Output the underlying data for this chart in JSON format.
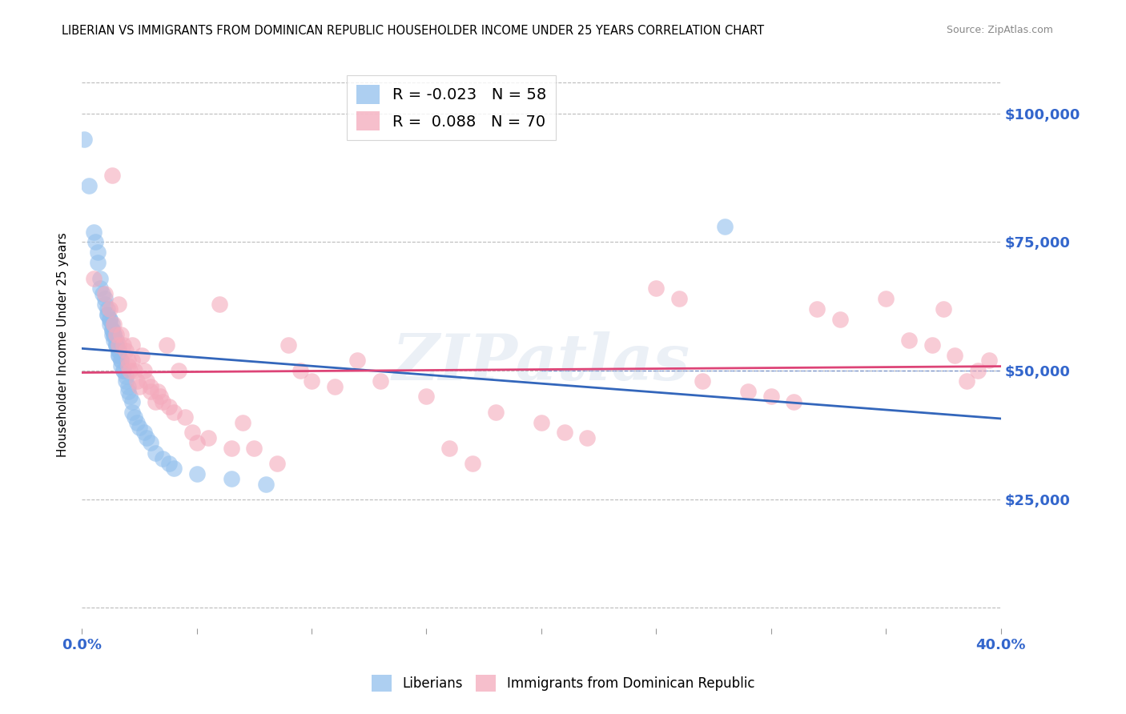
{
  "title": "LIBERIAN VS IMMIGRANTS FROM DOMINICAN REPUBLIC HOUSEHOLDER INCOME UNDER 25 YEARS CORRELATION CHART",
  "source": "Source: ZipAtlas.com",
  "ylabel": "Householder Income Under 25 years",
  "ytick_labels": [
    "$25,000",
    "$50,000",
    "$75,000",
    "$100,000"
  ],
  "ytick_values": [
    25000,
    50000,
    75000,
    100000
  ],
  "ylim": [
    0,
    110000
  ],
  "xlim": [
    0,
    0.4
  ],
  "legend_blue_r": "-0.023",
  "legend_blue_n": "58",
  "legend_pink_r": "0.088",
  "legend_pink_n": "70",
  "blue_color": "#92BFED",
  "pink_color": "#F4AABC",
  "trend_blue": "#3366BB",
  "trend_pink": "#DD4477",
  "background": "#FFFFFF",
  "grid_color": "#BBBBBB",
  "axis_label_color": "#3366CC",
  "watermark": "ZIPatlas",
  "blue_x": [
    0.001,
    0.003,
    0.005,
    0.006,
    0.007,
    0.007,
    0.008,
    0.008,
    0.009,
    0.01,
    0.01,
    0.011,
    0.011,
    0.011,
    0.012,
    0.012,
    0.012,
    0.013,
    0.013,
    0.013,
    0.013,
    0.014,
    0.014,
    0.014,
    0.015,
    0.015,
    0.015,
    0.015,
    0.016,
    0.016,
    0.016,
    0.016,
    0.017,
    0.017,
    0.017,
    0.018,
    0.018,
    0.019,
    0.019,
    0.02,
    0.02,
    0.021,
    0.022,
    0.022,
    0.023,
    0.024,
    0.025,
    0.027,
    0.028,
    0.03,
    0.032,
    0.035,
    0.038,
    0.04,
    0.05,
    0.065,
    0.08,
    0.28
  ],
  "blue_y": [
    95000,
    86000,
    77000,
    75000,
    73000,
    71000,
    68000,
    66000,
    65000,
    64000,
    63000,
    62000,
    61000,
    61000,
    60000,
    60000,
    59000,
    59000,
    58000,
    58000,
    57000,
    57000,
    57000,
    56000,
    56000,
    55000,
    55000,
    55000,
    54000,
    54000,
    53000,
    53000,
    52000,
    52000,
    51000,
    50000,
    50000,
    49000,
    48000,
    47000,
    46000,
    45000,
    44000,
    42000,
    41000,
    40000,
    39000,
    38000,
    37000,
    36000,
    34000,
    33000,
    32000,
    31000,
    30000,
    29000,
    28000,
    78000
  ],
  "pink_x": [
    0.005,
    0.01,
    0.012,
    0.013,
    0.014,
    0.015,
    0.016,
    0.016,
    0.017,
    0.018,
    0.019,
    0.02,
    0.02,
    0.021,
    0.022,
    0.022,
    0.023,
    0.024,
    0.025,
    0.026,
    0.027,
    0.028,
    0.03,
    0.03,
    0.032,
    0.033,
    0.034,
    0.035,
    0.037,
    0.038,
    0.04,
    0.042,
    0.045,
    0.048,
    0.05,
    0.055,
    0.06,
    0.065,
    0.07,
    0.075,
    0.085,
    0.09,
    0.095,
    0.1,
    0.11,
    0.12,
    0.13,
    0.15,
    0.16,
    0.17,
    0.18,
    0.2,
    0.21,
    0.22,
    0.25,
    0.26,
    0.27,
    0.29,
    0.3,
    0.31,
    0.32,
    0.33,
    0.35,
    0.36,
    0.37,
    0.375,
    0.38,
    0.385,
    0.39,
    0.395
  ],
  "pink_y": [
    68000,
    65000,
    62000,
    88000,
    59000,
    57000,
    55000,
    63000,
    57000,
    55000,
    54000,
    52000,
    51000,
    50000,
    55000,
    52000,
    50000,
    48000,
    47000,
    53000,
    50000,
    48000,
    47000,
    46000,
    44000,
    46000,
    45000,
    44000,
    55000,
    43000,
    42000,
    50000,
    41000,
    38000,
    36000,
    37000,
    63000,
    35000,
    40000,
    35000,
    32000,
    55000,
    50000,
    48000,
    47000,
    52000,
    48000,
    45000,
    35000,
    32000,
    42000,
    40000,
    38000,
    37000,
    66000,
    64000,
    48000,
    46000,
    45000,
    44000,
    62000,
    60000,
    64000,
    56000,
    55000,
    62000,
    53000,
    48000,
    50000,
    52000
  ]
}
